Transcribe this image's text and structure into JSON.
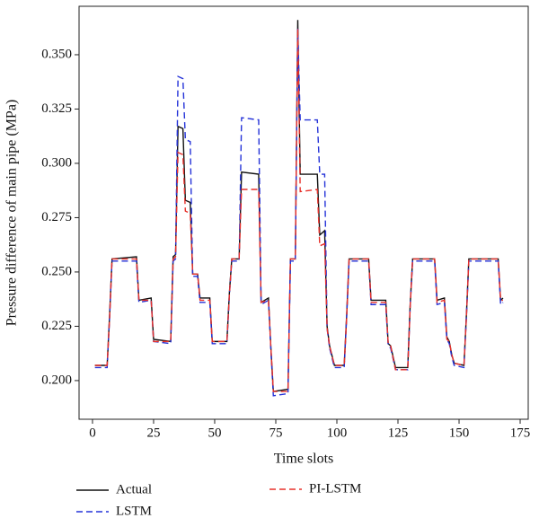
{
  "chart_data": {
    "type": "line",
    "xlabel": "Time slots",
    "ylabel": "Pressure difference of main pipe (MPa)",
    "x": [
      1,
      6,
      7,
      8,
      18,
      19,
      24,
      25,
      32,
      33,
      34,
      35,
      37,
      38,
      40,
      41,
      43,
      44,
      48,
      49,
      55,
      56,
      57,
      60,
      61,
      68,
      69,
      72,
      73,
      74,
      80,
      81,
      83,
      84,
      85,
      92,
      93,
      95,
      96,
      97,
      99,
      103,
      104,
      105,
      113,
      114,
      120,
      121,
      122,
      124,
      129,
      130,
      131,
      140,
      141,
      144,
      145,
      146,
      147,
      148,
      152,
      153,
      154,
      166,
      167,
      168
    ],
    "series": [
      {
        "name": "Actual",
        "color": "#111111",
        "style": "solid",
        "values": [
          0.207,
          0.207,
          0.23,
          0.256,
          0.257,
          0.237,
          0.238,
          0.219,
          0.218,
          0.257,
          0.258,
          0.317,
          0.316,
          0.283,
          0.282,
          0.249,
          0.249,
          0.238,
          0.238,
          0.218,
          0.218,
          0.24,
          0.256,
          0.256,
          0.296,
          0.295,
          0.236,
          0.238,
          0.215,
          0.195,
          0.196,
          0.256,
          0.256,
          0.366,
          0.295,
          0.295,
          0.267,
          0.269,
          0.225,
          0.216,
          0.207,
          0.207,
          0.23,
          0.256,
          0.256,
          0.237,
          0.237,
          0.217,
          0.216,
          0.206,
          0.206,
          0.235,
          0.256,
          0.256,
          0.237,
          0.238,
          0.22,
          0.218,
          0.212,
          0.208,
          0.207,
          0.23,
          0.256,
          0.256,
          0.237,
          0.238
        ]
      },
      {
        "name": "LSTM",
        "color": "#2432d8",
        "style": "dashed",
        "values": [
          0.206,
          0.206,
          0.229,
          0.255,
          0.255,
          0.236,
          0.237,
          0.218,
          0.217,
          0.255,
          0.256,
          0.34,
          0.339,
          0.311,
          0.31,
          0.248,
          0.248,
          0.236,
          0.236,
          0.217,
          0.217,
          0.239,
          0.255,
          0.255,
          0.321,
          0.32,
          0.235,
          0.237,
          0.214,
          0.193,
          0.194,
          0.255,
          0.255,
          0.362,
          0.32,
          0.32,
          0.295,
          0.295,
          0.224,
          0.215,
          0.206,
          0.206,
          0.229,
          0.255,
          0.255,
          0.235,
          0.235,
          0.216,
          0.215,
          0.205,
          0.205,
          0.234,
          0.255,
          0.255,
          0.235,
          0.236,
          0.219,
          0.217,
          0.211,
          0.207,
          0.206,
          0.229,
          0.255,
          0.255,
          0.235,
          0.236
        ]
      },
      {
        "name": "PI-LSTM",
        "color": "#e8302a",
        "style": "dashed",
        "values": [
          0.207,
          0.207,
          0.229,
          0.256,
          0.256,
          0.237,
          0.237,
          0.218,
          0.218,
          0.256,
          0.257,
          0.305,
          0.304,
          0.278,
          0.277,
          0.249,
          0.249,
          0.237,
          0.237,
          0.218,
          0.218,
          0.239,
          0.256,
          0.256,
          0.288,
          0.288,
          0.236,
          0.237,
          0.215,
          0.195,
          0.195,
          0.256,
          0.256,
          0.362,
          0.287,
          0.288,
          0.262,
          0.263,
          0.224,
          0.216,
          0.207,
          0.207,
          0.229,
          0.256,
          0.256,
          0.236,
          0.236,
          0.217,
          0.216,
          0.205,
          0.205,
          0.234,
          0.256,
          0.256,
          0.236,
          0.237,
          0.219,
          0.218,
          0.212,
          0.208,
          0.207,
          0.229,
          0.256,
          0.256,
          0.237,
          0.237
        ]
      }
    ],
    "xlim": [
      -5.5,
      178.3
    ],
    "ylim": [
      0.1822,
      0.3723
    ],
    "xticks": [
      0,
      25,
      50,
      75,
      100,
      125,
      150,
      175
    ],
    "yticks": [
      {
        "value": 0.2,
        "label": "0.200"
      },
      0.225,
      {
        "value": 0.25,
        "label": "0.250"
      },
      0.275,
      {
        "value": 0.3,
        "label": "0.300"
      },
      0.325,
      {
        "value": 0.35,
        "label": "0.350"
      }
    ],
    "grid": false,
    "legend": "bottom"
  }
}
